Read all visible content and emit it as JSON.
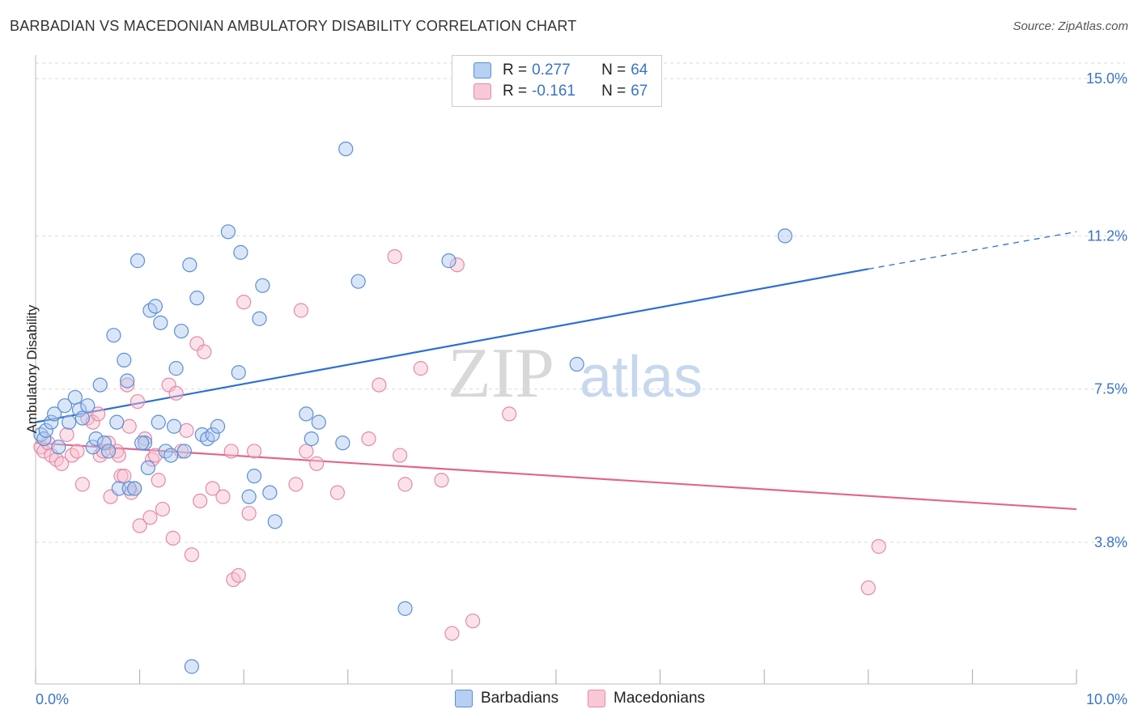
{
  "title": "BARBADIAN VS MACEDONIAN AMBULATORY DISABILITY CORRELATION CHART",
  "source": "Source: ZipAtlas.com",
  "watermark": {
    "zip": "ZIP",
    "atlas": "atlas"
  },
  "legend": {
    "rows": [
      {
        "r_label": "R = ",
        "r_value": "0.277",
        "n_label": "N = ",
        "n_value": "64"
      },
      {
        "r_label": "R = ",
        "r_value": "-0.161",
        "n_label": "N = ",
        "n_value": "67"
      }
    ]
  },
  "bottom_legend": [
    "Barbadians",
    "Macedonians"
  ],
  "colors": {
    "blue_fill": "#aec8ee",
    "blue_stroke": "#5b8fd6",
    "blue_line": "#2e6fd1",
    "pink_fill": "#f6bfd0",
    "pink_stroke": "#e48aa6",
    "pink_line": "#e0668f",
    "grid": "#d9d9d9",
    "tick_label": "#3a74c8"
  },
  "chart_data": {
    "type": "scatter",
    "title": "BARBADIAN VS MACEDONIAN AMBULATORY DISABILITY CORRELATION CHART",
    "xlabel": "",
    "ylabel": "Ambulatory Disability",
    "xlim": [
      0.0,
      10.0
    ],
    "ylim": [
      0.0,
      15.5
    ],
    "x_tick_labels": [
      "0.0%",
      "10.0%"
    ],
    "y_ticks": [
      3.8,
      7.5,
      11.2,
      15.0
    ],
    "y_tick_labels": [
      "3.8%",
      "7.5%",
      "11.2%",
      "15.0%"
    ],
    "grid": true,
    "legend_position": "top-center",
    "series": [
      {
        "name": "Barbadians",
        "r": 0.277,
        "n": 64,
        "trend": {
          "x0": 0.0,
          "y0": 6.7,
          "x1": 8.0,
          "y1": 10.4,
          "dash_to_x": 10.0,
          "dash_to_y": 11.3
        },
        "points": [
          [
            0.05,
            6.4
          ],
          [
            0.08,
            6.3
          ],
          [
            0.1,
            6.5
          ],
          [
            0.15,
            6.7
          ],
          [
            0.18,
            6.9
          ],
          [
            0.22,
            6.1
          ],
          [
            0.28,
            7.1
          ],
          [
            0.32,
            6.7
          ],
          [
            0.38,
            7.3
          ],
          [
            0.42,
            7.0
          ],
          [
            0.45,
            6.8
          ],
          [
            0.5,
            7.1
          ],
          [
            0.55,
            6.1
          ],
          [
            0.58,
            6.3
          ],
          [
            0.62,
            7.6
          ],
          [
            0.66,
            6.2
          ],
          [
            0.7,
            6.0
          ],
          [
            0.75,
            8.8
          ],
          [
            0.78,
            6.7
          ],
          [
            0.8,
            5.1
          ],
          [
            0.85,
            8.2
          ],
          [
            0.88,
            7.7
          ],
          [
            0.9,
            5.1
          ],
          [
            0.95,
            5.1
          ],
          [
            0.98,
            10.6
          ],
          [
            1.05,
            6.2
          ],
          [
            1.08,
            5.6
          ],
          [
            1.1,
            9.4
          ],
          [
            1.15,
            9.5
          ],
          [
            1.18,
            6.7
          ],
          [
            1.2,
            9.1
          ],
          [
            1.25,
            6.0
          ],
          [
            1.3,
            5.9
          ],
          [
            1.33,
            6.6
          ],
          [
            1.35,
            8.0
          ],
          [
            1.4,
            8.9
          ],
          [
            1.43,
            6.0
          ],
          [
            1.48,
            10.5
          ],
          [
            1.5,
            0.8
          ],
          [
            1.55,
            9.7
          ],
          [
            1.6,
            6.4
          ],
          [
            1.65,
            6.3
          ],
          [
            1.7,
            6.4
          ],
          [
            1.75,
            6.6
          ],
          [
            1.85,
            11.3
          ],
          [
            1.95,
            7.9
          ],
          [
            1.97,
            10.8
          ],
          [
            2.05,
            4.9
          ],
          [
            2.1,
            5.4
          ],
          [
            2.15,
            9.2
          ],
          [
            2.18,
            10.0
          ],
          [
            2.25,
            5.0
          ],
          [
            2.3,
            4.3
          ],
          [
            2.6,
            6.9
          ],
          [
            2.65,
            6.3
          ],
          [
            2.72,
            6.7
          ],
          [
            2.95,
            6.2
          ],
          [
            2.98,
            13.3
          ],
          [
            3.1,
            10.1
          ],
          [
            3.55,
            2.2
          ],
          [
            3.97,
            10.6
          ],
          [
            5.2,
            8.1
          ],
          [
            7.2,
            11.2
          ],
          [
            1.02,
            6.2
          ]
        ]
      },
      {
        "name": "Macedonians",
        "r": -0.161,
        "n": 67,
        "trend": {
          "x0": 0.0,
          "y0": 6.2,
          "x1": 10.0,
          "y1": 4.6
        },
        "points": [
          [
            0.05,
            6.1
          ],
          [
            0.08,
            6.0
          ],
          [
            0.12,
            6.2
          ],
          [
            0.15,
            5.9
          ],
          [
            0.2,
            5.8
          ],
          [
            0.25,
            5.7
          ],
          [
            0.3,
            6.4
          ],
          [
            0.35,
            5.9
          ],
          [
            0.4,
            6.0
          ],
          [
            0.45,
            5.2
          ],
          [
            0.5,
            6.8
          ],
          [
            0.55,
            6.7
          ],
          [
            0.6,
            6.9
          ],
          [
            0.62,
            5.9
          ],
          [
            0.65,
            6.0
          ],
          [
            0.7,
            6.2
          ],
          [
            0.72,
            4.9
          ],
          [
            0.78,
            6.0
          ],
          [
            0.8,
            5.9
          ],
          [
            0.82,
            5.4
          ],
          [
            0.85,
            5.4
          ],
          [
            0.88,
            7.6
          ],
          [
            0.9,
            6.6
          ],
          [
            0.92,
            5.0
          ],
          [
            0.95,
            5.1
          ],
          [
            0.98,
            7.2
          ],
          [
            1.0,
            4.2
          ],
          [
            1.05,
            6.3
          ],
          [
            1.1,
            4.4
          ],
          [
            1.12,
            5.8
          ],
          [
            1.15,
            5.9
          ],
          [
            1.18,
            5.3
          ],
          [
            1.22,
            4.6
          ],
          [
            1.28,
            7.6
          ],
          [
            1.32,
            3.9
          ],
          [
            1.35,
            7.4
          ],
          [
            1.4,
            6.0
          ],
          [
            1.45,
            6.5
          ],
          [
            1.5,
            3.5
          ],
          [
            1.55,
            8.6
          ],
          [
            1.58,
            4.8
          ],
          [
            1.62,
            8.4
          ],
          [
            1.7,
            5.1
          ],
          [
            1.8,
            4.9
          ],
          [
            1.88,
            6.0
          ],
          [
            1.9,
            2.9
          ],
          [
            1.95,
            3.0
          ],
          [
            2.0,
            9.6
          ],
          [
            2.05,
            4.5
          ],
          [
            2.1,
            6.0
          ],
          [
            2.5,
            5.2
          ],
          [
            2.55,
            9.4
          ],
          [
            2.6,
            6.0
          ],
          [
            2.7,
            5.7
          ],
          [
            2.9,
            5.0
          ],
          [
            3.2,
            6.3
          ],
          [
            3.3,
            7.6
          ],
          [
            3.45,
            10.7
          ],
          [
            3.5,
            5.9
          ],
          [
            3.55,
            5.2
          ],
          [
            3.7,
            8.0
          ],
          [
            3.9,
            5.3
          ],
          [
            4.0,
            1.6
          ],
          [
            4.05,
            10.5
          ],
          [
            4.2,
            1.9
          ],
          [
            4.55,
            6.9
          ],
          [
            8.1,
            3.7
          ]
        ],
        "extra_points": [
          [
            8.0,
            2.7
          ]
        ]
      }
    ]
  }
}
